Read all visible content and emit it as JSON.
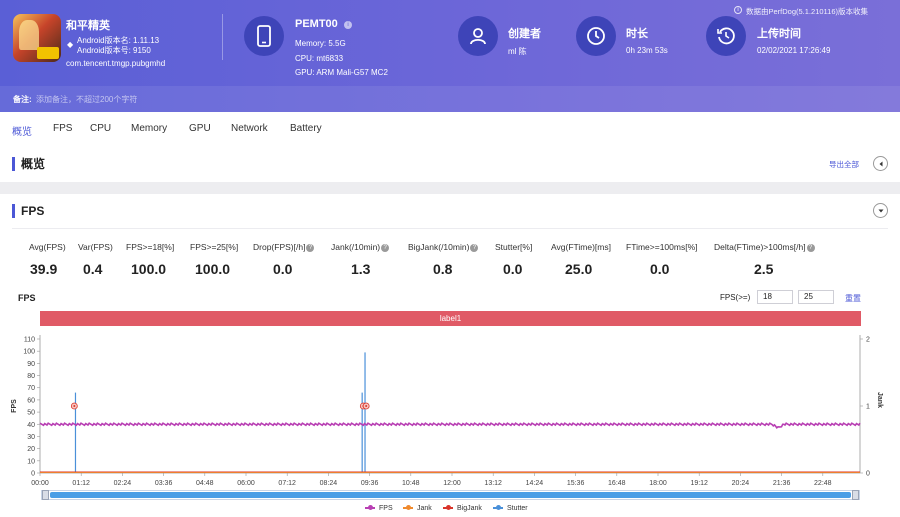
{
  "header": {
    "app_name": "和平精英",
    "platform_icon": "android-icon",
    "version_name": "Android版本名: 1.11.13",
    "version_code": "Android版本号: 9150",
    "package": "com.tencent.tmgp.pubgmhd",
    "device_name": "PEMT00",
    "device_memory": "Memory: 5.5G",
    "device_cpu": "CPU: mt6833",
    "device_gpu": "GPU: ARM Mali-G57 MC2",
    "creator_label": "创建者",
    "creator_value": "ml 陈",
    "duration_label": "时长",
    "duration_value": "0h 23m 53s",
    "upload_label": "上传时间",
    "upload_value": "02/02/2021 17:26:49",
    "data_source": "数据由PerfDog(5.1.210116)版本收集",
    "note_label": "备注:",
    "note_placeholder": "添加备注，不超过200个字符"
  },
  "tabs": [
    "概览",
    "FPS",
    "CPU",
    "Memory",
    "GPU",
    "Network",
    "Battery"
  ],
  "overview": {
    "title": "概览",
    "export_label": "导出全部"
  },
  "fps_section": {
    "title": "FPS",
    "stats": [
      {
        "label": "Avg(FPS)",
        "value": "39.9",
        "help": false
      },
      {
        "label": "Var(FPS)",
        "value": "0.4",
        "help": false
      },
      {
        "label": "FPS>=18[%]",
        "value": "100.0",
        "help": false
      },
      {
        "label": "FPS>=25[%]",
        "value": "100.0",
        "help": false
      },
      {
        "label": "Drop(FPS)[/h]",
        "value": "0.0",
        "help": true
      },
      {
        "label": "Jank(/10min)",
        "value": "1.3",
        "help": true
      },
      {
        "label": "BigJank(/10min)",
        "value": "0.8",
        "help": true
      },
      {
        "label": "Stutter[%]",
        "value": "0.0",
        "help": false
      },
      {
        "label": "Avg(FTime)[ms]",
        "value": "25.0",
        "help": false
      },
      {
        "label": "FTime>=100ms[%]",
        "value": "0.0",
        "help": false
      },
      {
        "label": "Delta(FTime)>100ms[/h]",
        "value": "2.5",
        "help": true
      }
    ],
    "chart_heading": "FPS",
    "threshold_label": "FPS(>=)",
    "threshold1": "18",
    "threshold2": "25",
    "reset_label": "重置",
    "label_bar": "label1"
  },
  "colors": {
    "accent": "#4b57d6",
    "header_start": "#5a5fd6",
    "header_end": "#7a6fd8",
    "label_bar": "#e05a66",
    "fps": "#b83fb3",
    "jank": "#f08a2e",
    "bigjank": "#d9342b",
    "stutter": "#4a90d9"
  },
  "chart_data": {
    "type": "line",
    "xlabel": "",
    "ylabel": "FPS",
    "y2label": "Jank",
    "ylim": [
      0,
      110
    ],
    "y2lim": [
      0,
      2
    ],
    "yticks": [
      0,
      10,
      20,
      30,
      40,
      50,
      60,
      70,
      80,
      90,
      100,
      110
    ],
    "y2ticks": [
      0,
      1,
      2
    ],
    "xticks": [
      "00:00",
      "01:12",
      "02:24",
      "03:36",
      "04:48",
      "06:00",
      "07:12",
      "08:24",
      "09:36",
      "10:48",
      "12:00",
      "13:12",
      "14:24",
      "15:36",
      "16:48",
      "18:00",
      "19:12",
      "20:24",
      "21:36",
      "22:48"
    ],
    "x_range_seconds": [
      0,
      1433
    ],
    "series": [
      {
        "name": "FPS",
        "baseline": 40,
        "points": [
          [
            0,
            40
          ],
          [
            60,
            40
          ],
          [
            120,
            40
          ],
          [
            200,
            40
          ],
          [
            300,
            40
          ],
          [
            400,
            40
          ],
          [
            500,
            40
          ],
          [
            560,
            40
          ],
          [
            580,
            40
          ],
          [
            640,
            40
          ],
          [
            800,
            40
          ],
          [
            1000,
            40
          ],
          [
            1200,
            40
          ],
          [
            1280,
            40
          ],
          [
            1290,
            37
          ],
          [
            1300,
            40
          ],
          [
            1433,
            40
          ]
        ]
      },
      {
        "name": "Jank",
        "events": [
          [
            60,
            1
          ],
          [
            565,
            1
          ],
          [
            570,
            1
          ]
        ]
      },
      {
        "name": "BigJank",
        "events": [
          [
            60,
            1
          ],
          [
            565,
            1
          ],
          [
            570,
            1
          ]
        ]
      },
      {
        "name": "Stutter",
        "spikes": [
          [
            62,
            66
          ],
          [
            563,
            66
          ],
          [
            568,
            99
          ]
        ]
      }
    ],
    "legend": [
      "FPS",
      "Jank",
      "BigJank",
      "Stutter"
    ],
    "legend_position": "bottom"
  }
}
